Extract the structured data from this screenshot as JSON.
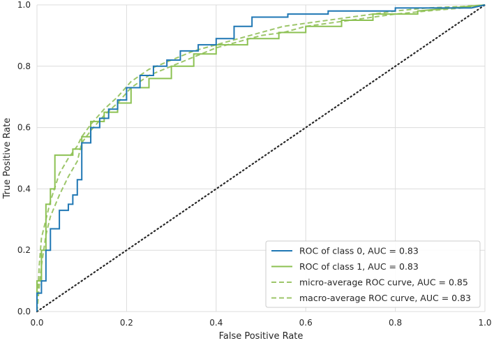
{
  "chart_data": {
    "type": "line",
    "title": "",
    "xlabel": "False Positive Rate",
    "ylabel": "True Positive Rate",
    "xlim": [
      0.0,
      1.0
    ],
    "ylim": [
      0.0,
      1.0
    ],
    "xticks": [
      "0.0",
      "0.2",
      "0.4",
      "0.6",
      "0.8",
      "1.0"
    ],
    "yticks": [
      "0.0",
      "0.2",
      "0.4",
      "0.6",
      "0.8",
      "1.0"
    ],
    "grid": true,
    "legend_position": "lower-right",
    "colors": {
      "class0": "#1f77b4",
      "class1": "#8cc152",
      "dashed": "#9dc66a",
      "diagonal": "#262626",
      "grid": "#dcdcdc"
    },
    "series": [
      {
        "name": "ROC of class 0, AUC = 0.83",
        "style": "solid",
        "color_key": "class0",
        "x": [
          0.0,
          0.0,
          0.01,
          0.01,
          0.02,
          0.02,
          0.03,
          0.03,
          0.05,
          0.05,
          0.07,
          0.07,
          0.08,
          0.08,
          0.09,
          0.09,
          0.1,
          0.1,
          0.12,
          0.12,
          0.14,
          0.14,
          0.16,
          0.16,
          0.18,
          0.18,
          0.2,
          0.2,
          0.23,
          0.23,
          0.26,
          0.26,
          0.29,
          0.29,
          0.32,
          0.32,
          0.36,
          0.36,
          0.4,
          0.4,
          0.44,
          0.44,
          0.48,
          0.48,
          0.56,
          0.56,
          0.65,
          0.65,
          0.8,
          0.8,
          0.97,
          1.0
        ],
        "y": [
          0.0,
          0.06,
          0.06,
          0.1,
          0.1,
          0.2,
          0.2,
          0.27,
          0.27,
          0.33,
          0.33,
          0.35,
          0.35,
          0.38,
          0.38,
          0.43,
          0.43,
          0.55,
          0.55,
          0.6,
          0.6,
          0.63,
          0.63,
          0.66,
          0.66,
          0.69,
          0.69,
          0.73,
          0.73,
          0.77,
          0.77,
          0.8,
          0.8,
          0.82,
          0.82,
          0.85,
          0.85,
          0.87,
          0.87,
          0.89,
          0.89,
          0.93,
          0.93,
          0.96,
          0.96,
          0.97,
          0.97,
          0.98,
          0.98,
          0.99,
          0.99,
          1.0
        ]
      },
      {
        "name": "ROC of class 1, AUC = 0.83",
        "style": "solid",
        "color_key": "class1",
        "x": [
          0.0,
          0.0,
          0.01,
          0.01,
          0.02,
          0.02,
          0.03,
          0.03,
          0.04,
          0.04,
          0.08,
          0.08,
          0.1,
          0.1,
          0.12,
          0.12,
          0.15,
          0.15,
          0.18,
          0.18,
          0.21,
          0.21,
          0.25,
          0.25,
          0.3,
          0.3,
          0.35,
          0.35,
          0.4,
          0.4,
          0.47,
          0.47,
          0.54,
          0.54,
          0.6,
          0.6,
          0.68,
          0.68,
          0.75,
          0.75,
          0.85,
          0.85,
          1.0
        ],
        "y": [
          0.0,
          0.1,
          0.1,
          0.2,
          0.2,
          0.35,
          0.35,
          0.4,
          0.4,
          0.51,
          0.51,
          0.53,
          0.53,
          0.57,
          0.57,
          0.62,
          0.62,
          0.65,
          0.65,
          0.68,
          0.68,
          0.73,
          0.73,
          0.76,
          0.76,
          0.8,
          0.8,
          0.84,
          0.84,
          0.87,
          0.87,
          0.89,
          0.89,
          0.91,
          0.91,
          0.93,
          0.93,
          0.95,
          0.95,
          0.97,
          0.97,
          0.98,
          1.0
        ]
      },
      {
        "name": "micro-average ROC curve, AUC = 0.85",
        "style": "dashed",
        "color_key": "dashed",
        "x": [
          0.0,
          0.005,
          0.01,
          0.02,
          0.03,
          0.05,
          0.07,
          0.09,
          0.1,
          0.12,
          0.15,
          0.18,
          0.21,
          0.25,
          0.3,
          0.35,
          0.4,
          0.45,
          0.5,
          0.55,
          0.6,
          0.65,
          0.7,
          0.75,
          0.8,
          0.87,
          0.95,
          1.0
        ],
        "y": [
          0.0,
          0.15,
          0.24,
          0.3,
          0.36,
          0.45,
          0.5,
          0.54,
          0.57,
          0.61,
          0.66,
          0.7,
          0.75,
          0.79,
          0.82,
          0.85,
          0.87,
          0.89,
          0.91,
          0.93,
          0.94,
          0.95,
          0.96,
          0.97,
          0.98,
          0.99,
          0.995,
          1.0
        ]
      },
      {
        "name": "macro-average ROC curve, AUC = 0.83",
        "style": "dashed",
        "color_key": "dashed",
        "x": [
          0.0,
          0.005,
          0.01,
          0.02,
          0.03,
          0.05,
          0.07,
          0.09,
          0.1,
          0.12,
          0.15,
          0.18,
          0.21,
          0.25,
          0.3,
          0.35,
          0.4,
          0.45,
          0.5,
          0.55,
          0.6,
          0.65,
          0.7,
          0.75,
          0.8,
          0.87,
          0.95,
          1.0
        ],
        "y": [
          0.0,
          0.08,
          0.15,
          0.25,
          0.31,
          0.38,
          0.44,
          0.49,
          0.55,
          0.59,
          0.64,
          0.68,
          0.73,
          0.77,
          0.8,
          0.83,
          0.86,
          0.88,
          0.9,
          0.91,
          0.93,
          0.94,
          0.95,
          0.96,
          0.97,
          0.98,
          0.99,
          1.0
        ]
      }
    ],
    "diagonal": {
      "style": "dotted",
      "x": [
        0.0,
        1.0
      ],
      "y": [
        0.0,
        1.0
      ]
    },
    "legend": [
      {
        "label": "ROC of class 0, AUC = 0.83",
        "style": "solid",
        "color_key": "class0"
      },
      {
        "label": "ROC of class 1, AUC = 0.83",
        "style": "solid",
        "color_key": "class1"
      },
      {
        "label": "micro-average ROC curve, AUC = 0.85",
        "style": "dashed",
        "color_key": "dashed"
      },
      {
        "label": "macro-average ROC curve, AUC = 0.83",
        "style": "dashed",
        "color_key": "dashed"
      }
    ]
  }
}
